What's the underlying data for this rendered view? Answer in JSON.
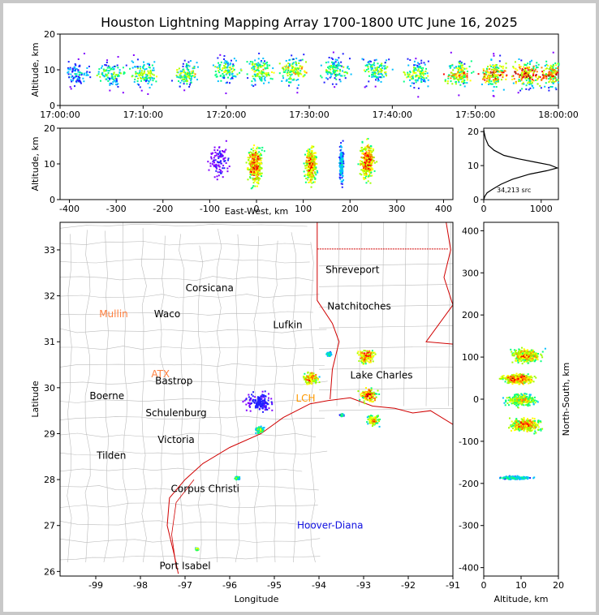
{
  "title": "Houston Lightning Mapping Array 1700-1800 UTC June 16, 2025",
  "colors": {
    "density": [
      "#8000ff",
      "#2020ff",
      "#00c0ff",
      "#00ff80",
      "#a0ff00",
      "#ffff00",
      "#ff8000",
      "#ff0000",
      "#a00000"
    ],
    "state_border": "#d00000",
    "county_border": "#bbbbbb"
  },
  "chart_data": [
    {
      "panel": "time-altitude",
      "type": "heatmap",
      "xlabel": "",
      "ylabel": "Altitude, km",
      "x_ticks": [
        "17:00:00",
        "17:10:00",
        "17:20:00",
        "17:30:00",
        "17:40:00",
        "17:50:00",
        "18:00:00"
      ],
      "xlim_minutes": [
        0,
        60
      ],
      "ylim": [
        0,
        20
      ],
      "y_ticks": [
        0,
        10,
        20
      ],
      "activity": [
        {
          "t": 2,
          "alt": 9,
          "intensity": 0.35
        },
        {
          "t": 6,
          "alt": 9,
          "intensity": 0.5
        },
        {
          "t": 10,
          "alt": 9,
          "intensity": 0.55
        },
        {
          "t": 15,
          "alt": 9,
          "intensity": 0.6
        },
        {
          "t": 20,
          "alt": 10,
          "intensity": 0.55
        },
        {
          "t": 24,
          "alt": 10,
          "intensity": 0.65
        },
        {
          "t": 28,
          "alt": 10,
          "intensity": 0.7
        },
        {
          "t": 33,
          "alt": 10,
          "intensity": 0.5
        },
        {
          "t": 38,
          "alt": 10,
          "intensity": 0.55
        },
        {
          "t": 43,
          "alt": 9,
          "intensity": 0.6
        },
        {
          "t": 48,
          "alt": 9,
          "intensity": 0.75
        },
        {
          "t": 52,
          "alt": 9,
          "intensity": 0.9
        },
        {
          "t": 56,
          "alt": 9,
          "intensity": 0.95
        },
        {
          "t": 59,
          "alt": 9,
          "intensity": 0.85
        }
      ]
    },
    {
      "panel": "east-west-altitude",
      "type": "heatmap",
      "xlabel": "East-West, km",
      "ylabel": "Altitude, km",
      "xlim": [
        -420,
        420
      ],
      "x_ticks": [
        -400,
        -300,
        -200,
        -100,
        0,
        100,
        200,
        300,
        400
      ],
      "ylim": [
        0,
        20
      ],
      "y_ticks": [
        0,
        10,
        20
      ],
      "cells": [
        {
          "x": -5,
          "alt": 10,
          "w": 40,
          "intensity": 0.95
        },
        {
          "x": 115,
          "alt": 10,
          "w": 30,
          "intensity": 0.9
        },
        {
          "x": 180,
          "alt": 10,
          "w": 12,
          "intensity": 0.4
        },
        {
          "x": 235,
          "alt": 11,
          "w": 40,
          "intensity": 0.95
        },
        {
          "x": -80,
          "alt": 11,
          "w": 60,
          "intensity": 0.15
        }
      ]
    },
    {
      "panel": "altitude-histogram",
      "type": "line",
      "annotation": "34,213 src",
      "xlim": [
        0,
        1300
      ],
      "x_ticks": [
        0,
        1000
      ],
      "ylim": [
        0,
        21
      ],
      "y_ticks": [
        0,
        10,
        20
      ],
      "x": [
        0,
        20,
        60,
        150,
        300,
        500,
        800,
        1100,
        1280,
        1150,
        900,
        600,
        350,
        180,
        80,
        30,
        10,
        0
      ],
      "y": [
        0,
        1,
        2,
        3,
        4.5,
        6,
        7.5,
        8.5,
        9.3,
        10.2,
        11,
        12,
        13,
        14.5,
        16,
        18,
        19.5,
        20.5
      ]
    },
    {
      "panel": "plan-view",
      "type": "heatmap",
      "xlabel": "Longitude",
      "ylabel": "Latitude",
      "xlim": [
        -99.8,
        -91
      ],
      "x_ticks": [
        -99,
        -98,
        -97,
        -96,
        -95,
        -94,
        -93,
        -92,
        -91
      ],
      "ylim": [
        25.9,
        33.6
      ],
      "y_ticks": [
        26,
        27,
        28,
        29,
        30,
        31,
        32,
        33
      ],
      "cells": [
        {
          "lon": -95.35,
          "lat": 29.7,
          "r": 0.35,
          "intensity": 0.2
        },
        {
          "lon": -95.35,
          "lat": 29.1,
          "r": 0.12,
          "intensity": 0.6
        },
        {
          "lon": -94.2,
          "lat": 30.22,
          "r": 0.22,
          "intensity": 0.95
        },
        {
          "lon": -92.95,
          "lat": 30.7,
          "r": 0.28,
          "intensity": 0.9
        },
        {
          "lon": -92.9,
          "lat": 29.85,
          "r": 0.25,
          "intensity": 0.95
        },
        {
          "lon": -92.8,
          "lat": 29.3,
          "r": 0.18,
          "intensity": 0.8
        },
        {
          "lon": -93.5,
          "lat": 29.42,
          "r": 0.05,
          "intensity": 0.5
        },
        {
          "lon": -95.85,
          "lat": 28.05,
          "r": 0.06,
          "intensity": 0.6
        },
        {
          "lon": -96.75,
          "lat": 26.5,
          "r": 0.05,
          "intensity": 0.7
        },
        {
          "lon": -93.8,
          "lat": 30.75,
          "r": 0.07,
          "intensity": 0.5
        }
      ],
      "cities": [
        {
          "name": "Shreveport",
          "lon": -93.25,
          "lat": 32.57,
          "color": "#000000"
        },
        {
          "name": "Corsicana",
          "lon": -96.45,
          "lat": 32.17,
          "color": "#000000"
        },
        {
          "name": "Natchitoches",
          "lon": -93.1,
          "lat": 31.77,
          "color": "#000000"
        },
        {
          "name": "Mullin",
          "lon": -98.6,
          "lat": 31.6,
          "color": "#ff8040"
        },
        {
          "name": "Waco",
          "lon": -97.4,
          "lat": 31.6,
          "color": "#000000"
        },
        {
          "name": "Lufkin",
          "lon": -94.7,
          "lat": 31.37,
          "color": "#000000"
        },
        {
          "name": "ATX",
          "lon": -97.55,
          "lat": 30.3,
          "color": "#ff8040"
        },
        {
          "name": "Lake Charles",
          "lon": -92.6,
          "lat": 30.27,
          "color": "#000000"
        },
        {
          "name": "Bastrop",
          "lon": -97.25,
          "lat": 30.15,
          "color": "#000000"
        },
        {
          "name": "Boerne",
          "lon": -98.75,
          "lat": 29.82,
          "color": "#000000"
        },
        {
          "name": "LCH",
          "lon": -94.3,
          "lat": 29.77,
          "color": "#ff9900"
        },
        {
          "name": "Schulenburg",
          "lon": -97.2,
          "lat": 29.45,
          "color": "#000000"
        },
        {
          "name": "Victoria",
          "lon": -97.2,
          "lat": 28.87,
          "color": "#000000"
        },
        {
          "name": "Tilden",
          "lon": -98.65,
          "lat": 28.52,
          "color": "#000000"
        },
        {
          "name": "Corpus Christi",
          "lon": -96.55,
          "lat": 27.8,
          "color": "#000000"
        },
        {
          "name": "Hoover-Diana",
          "lon": -93.75,
          "lat": 27.0,
          "color": "#1010e0"
        },
        {
          "name": "Port Isabel",
          "lon": -97.0,
          "lat": 26.12,
          "color": "#000000"
        }
      ]
    },
    {
      "panel": "altitude-north-south",
      "type": "heatmap",
      "xlabel": "Altitude, km",
      "ylabel": "North-South, km",
      "xlim": [
        0,
        20
      ],
      "x_ticks": [
        0,
        10,
        20
      ],
      "ylim": [
        -420,
        420
      ],
      "y_ticks": [
        -400,
        -300,
        -200,
        -100,
        0,
        100,
        200,
        300,
        400
      ],
      "cells": [
        {
          "ns": 105,
          "alt": 11,
          "h": 35,
          "intensity": 0.85
        },
        {
          "ns": 50,
          "alt": 9,
          "h": 25,
          "intensity": 0.95
        },
        {
          "ns": 0,
          "alt": 10,
          "h": 30,
          "intensity": 0.75
        },
        {
          "ns": -60,
          "alt": 11,
          "h": 35,
          "intensity": 0.9
        },
        {
          "ns": -185,
          "alt": 8,
          "h": 8,
          "intensity": 0.45
        }
      ]
    }
  ]
}
